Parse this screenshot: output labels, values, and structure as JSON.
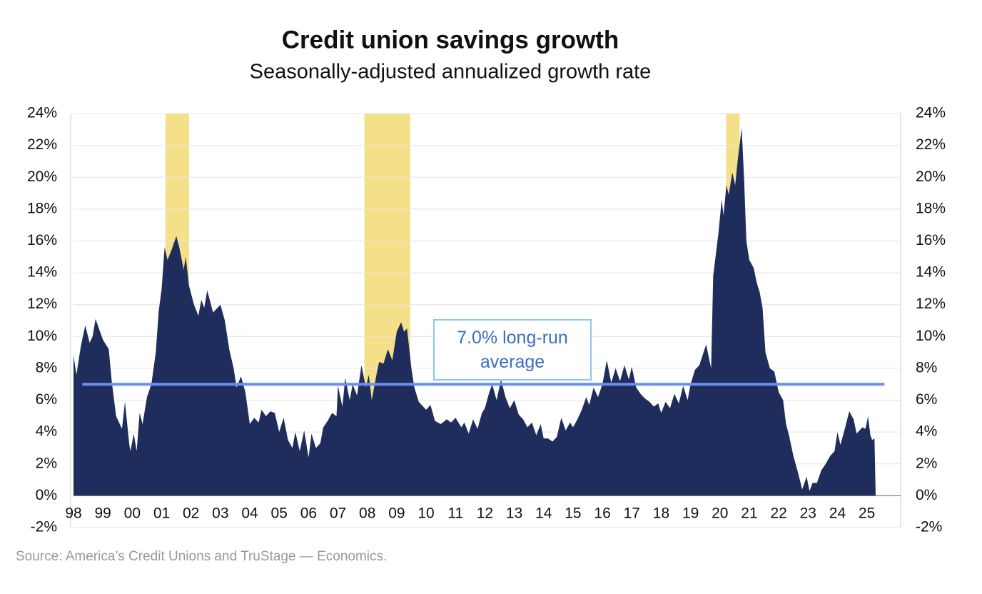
{
  "chart_data": {
    "type": "area",
    "title": "Credit union savings growth",
    "subtitle": "Seasonally-adjusted annualized growth rate",
    "source": "Source: America’s Credit Unions and TruStage — Economics.",
    "annotation": "7.0% long-run average",
    "color": "#1f2d5c",
    "average_line": {
      "value": 7,
      "x": [
        1998.3,
        2025.6
      ],
      "color": "#6b8ff0"
    },
    "shaded_periods": [
      [
        2001.13,
        2001.93
      ],
      [
        2007.9,
        2009.46
      ],
      [
        2020.21,
        2020.67
      ]
    ],
    "shade_color": "#f5e08a",
    "x": [
      1998.0,
      1998.1,
      1998.25,
      1998.4,
      1998.55,
      1998.65,
      1998.75,
      1999.0,
      1999.2,
      1999.3,
      1999.45,
      1999.65,
      1999.75,
      1999.9,
      1999.94,
      2000.05,
      2000.15,
      2000.25,
      2000.35,
      2000.5,
      2000.65,
      2000.8,
      2000.9,
      2001.0,
      2001.1,
      2001.2,
      2001.35,
      2001.5,
      2001.6,
      2001.75,
      2001.82,
      2001.93,
      2002.1,
      2002.25,
      2002.35,
      2002.45,
      2002.55,
      2002.65,
      2002.75,
      2002.9,
      2003.0,
      2003.15,
      2003.3,
      2003.45,
      2003.55,
      2003.7,
      2003.85,
      2004.0,
      2004.15,
      2004.3,
      2004.4,
      2004.55,
      2004.7,
      2004.85,
      2005.0,
      2005.15,
      2005.3,
      2005.45,
      2005.55,
      2005.7,
      2005.85,
      2006.0,
      2006.1,
      2006.25,
      2006.4,
      2006.5,
      2006.65,
      2006.8,
      2006.95,
      2007.0,
      2007.15,
      2007.25,
      2007.4,
      2007.5,
      2007.65,
      2007.8,
      2007.95,
      2008.05,
      2008.15,
      2008.3,
      2008.4,
      2008.55,
      2008.7,
      2008.85,
      2009.0,
      2009.15,
      2009.25,
      2009.35,
      2009.5,
      2009.6,
      2009.75,
      2009.9,
      2010.0,
      2010.15,
      2010.3,
      2010.5,
      2010.7,
      2010.85,
      2011.0,
      2011.2,
      2011.3,
      2011.45,
      2011.6,
      2011.75,
      2011.9,
      2012.0,
      2012.15,
      2012.25,
      2012.4,
      2012.55,
      2012.7,
      2012.85,
      2013.0,
      2013.15,
      2013.3,
      2013.45,
      2013.6,
      2013.75,
      2013.9,
      2014.0,
      2014.15,
      2014.3,
      2014.45,
      2014.6,
      2014.75,
      2014.9,
      2015.0,
      2015.15,
      2015.3,
      2015.45,
      2015.55,
      2015.7,
      2015.85,
      2016.0,
      2016.15,
      2016.3,
      2016.45,
      2016.6,
      2016.75,
      2016.9,
      2017.0,
      2017.15,
      2017.3,
      2017.45,
      2017.6,
      2017.75,
      2017.9,
      2018.0,
      2018.15,
      2018.3,
      2018.45,
      2018.6,
      2018.75,
      2018.9,
      2019.0,
      2019.15,
      2019.3,
      2019.53,
      2019.7,
      2019.77,
      2019.85,
      2019.95,
      2020.06,
      2020.12,
      2020.22,
      2020.3,
      2020.42,
      2020.52,
      2020.6,
      2020.74,
      2020.82,
      2020.9,
      2021.0,
      2021.15,
      2021.25,
      2021.35,
      2021.45,
      2021.55,
      2021.7,
      2021.85,
      2022.0,
      2022.15,
      2022.25,
      2022.35,
      2022.5,
      2022.65,
      2022.8,
      2022.95,
      2023.05,
      2023.15,
      2023.3,
      2023.45,
      2023.6,
      2023.75,
      2023.9,
      2024.0,
      2024.1,
      2024.25,
      2024.4,
      2024.55,
      2024.65,
      2024.85,
      2024.95,
      2025.0,
      2025.04,
      2025.12,
      2025.18,
      2025.26,
      2025.3
    ],
    "values": [
      8.8,
      7.6,
      9.4,
      10.7,
      9.6,
      10.0,
      11.1,
      9.8,
      9.2,
      7.2,
      5.0,
      4.2,
      5.9,
      3.2,
      2.8,
      3.9,
      2.8,
      5.2,
      4.5,
      6.2,
      7.0,
      9.0,
      11.6,
      13.0,
      15.6,
      14.8,
      15.5,
      16.3,
      15.6,
      14.2,
      15.0,
      13.2,
      12.0,
      11.3,
      12.3,
      11.8,
      12.9,
      12.2,
      11.5,
      11.8,
      12.0,
      11.0,
      9.2,
      8.0,
      6.8,
      7.5,
      6.5,
      4.5,
      4.9,
      4.6,
      5.4,
      5.0,
      5.3,
      5.2,
      4.0,
      4.9,
      3.5,
      3.0,
      4.0,
      2.8,
      4.1,
      2.4,
      3.9,
      3.0,
      3.3,
      4.3,
      4.7,
      5.2,
      5.0,
      6.9,
      5.6,
      7.4,
      6.0,
      7.0,
      6.3,
      8.2,
      6.8,
      7.6,
      6.0,
      7.5,
      8.4,
      8.3,
      9.2,
      8.5,
      10.3,
      10.9,
      10.3,
      10.5,
      8.0,
      6.8,
      5.9,
      5.6,
      5.4,
      5.7,
      4.7,
      4.5,
      4.8,
      4.6,
      4.9,
      4.3,
      4.6,
      3.9,
      4.8,
      4.2,
      5.2,
      5.5,
      6.5,
      7.0,
      6.0,
      7.3,
      6.2,
      5.5,
      6.0,
      5.1,
      4.8,
      4.3,
      4.6,
      3.8,
      4.5,
      3.6,
      3.6,
      3.4,
      3.7,
      4.9,
      4.1,
      4.6,
      4.3,
      4.8,
      5.4,
      6.2,
      5.7,
      6.8,
      6.2,
      7.0,
      8.5,
      7.1,
      8.0,
      7.2,
      8.2,
      7.3,
      8.1,
      6.8,
      6.4,
      6.1,
      5.9,
      5.6,
      5.8,
      5.2,
      5.9,
      5.5,
      6.4,
      5.8,
      6.9,
      6.0,
      7.0,
      7.9,
      8.2,
      9.5,
      8.0,
      13.8,
      15.0,
      16.5,
      18.6,
      17.6,
      19.5,
      18.9,
      20.3,
      19.5,
      21.0,
      23.1,
      20.0,
      16.0,
      14.8,
      14.3,
      13.4,
      12.8,
      11.8,
      9.0,
      8.0,
      7.8,
      6.5,
      6.0,
      4.5,
      3.8,
      2.5,
      1.5,
      0.4,
      1.2,
      0.3,
      0.8,
      0.8,
      1.6,
      2.0,
      2.5,
      2.8,
      4.0,
      3.2,
      4.2,
      5.3,
      4.8,
      3.9,
      4.3,
      4.2,
      4.6,
      5.0,
      3.8,
      3.5,
      3.6,
      0
    ],
    "xlim": [
      1998,
      2026.15
    ],
    "xticks": [
      {
        "value": 1998,
        "label": "98"
      },
      {
        "value": 1999,
        "label": "99"
      },
      {
        "value": 2000,
        "label": "00"
      },
      {
        "value": 2001,
        "label": "01"
      },
      {
        "value": 2002,
        "label": "02"
      },
      {
        "value": 2003,
        "label": "03"
      },
      {
        "value": 2004,
        "label": "04"
      },
      {
        "value": 2005,
        "label": "05"
      },
      {
        "value": 2006,
        "label": "06"
      },
      {
        "value": 2007,
        "label": "07"
      },
      {
        "value": 2008,
        "label": "08"
      },
      {
        "value": 2009,
        "label": "09"
      },
      {
        "value": 2010,
        "label": "10"
      },
      {
        "value": 2011,
        "label": "11"
      },
      {
        "value": 2012,
        "label": "12"
      },
      {
        "value": 2013,
        "label": "13"
      },
      {
        "value": 2014,
        "label": "14"
      },
      {
        "value": 2015,
        "label": "15"
      },
      {
        "value": 2016,
        "label": "16"
      },
      {
        "value": 2017,
        "label": "17"
      },
      {
        "value": 2018,
        "label": "18"
      },
      {
        "value": 2019,
        "label": "19"
      },
      {
        "value": 2020,
        "label": "20"
      },
      {
        "value": 2021,
        "label": "21"
      },
      {
        "value": 2022,
        "label": "22"
      },
      {
        "value": 2023,
        "label": "23"
      },
      {
        "value": 2024,
        "label": "24"
      },
      {
        "value": 2025,
        "label": "25"
      }
    ],
    "ylim": [
      -2,
      24
    ],
    "yticks": [
      {
        "value": -2,
        "label": "-2%"
      },
      {
        "value": 0,
        "label": "0%"
      },
      {
        "value": 2,
        "label": "2%"
      },
      {
        "value": 4,
        "label": "4%"
      },
      {
        "value": 6,
        "label": "6%"
      },
      {
        "value": 8,
        "label": "8%"
      },
      {
        "value": 10,
        "label": "10%"
      },
      {
        "value": 12,
        "label": "12%"
      },
      {
        "value": 14,
        "label": "14%"
      },
      {
        "value": 16,
        "label": "16%"
      },
      {
        "value": 18,
        "label": "18%"
      },
      {
        "value": 20,
        "label": "20%"
      },
      {
        "value": 22,
        "label": "22%"
      },
      {
        "value": 24,
        "label": "24%"
      }
    ],
    "y2lim": [
      -2,
      24
    ],
    "y2ticks": [
      {
        "value": -2,
        "label": "-2%"
      },
      {
        "value": 0,
        "label": "0%"
      },
      {
        "value": 2,
        "label": "2%"
      },
      {
        "value": 4,
        "label": "4%"
      },
      {
        "value": 6,
        "label": "6%"
      },
      {
        "value": 8,
        "label": "8%"
      },
      {
        "value": 10,
        "label": "10%"
      },
      {
        "value": 12,
        "label": "12%"
      },
      {
        "value": 14,
        "label": "14%"
      },
      {
        "value": 16,
        "label": "16%"
      },
      {
        "value": 18,
        "label": "18%"
      },
      {
        "value": 20,
        "label": "20%"
      },
      {
        "value": 22,
        "label": "22%"
      },
      {
        "value": 24,
        "label": "24%"
      }
    ],
    "grid": true
  }
}
